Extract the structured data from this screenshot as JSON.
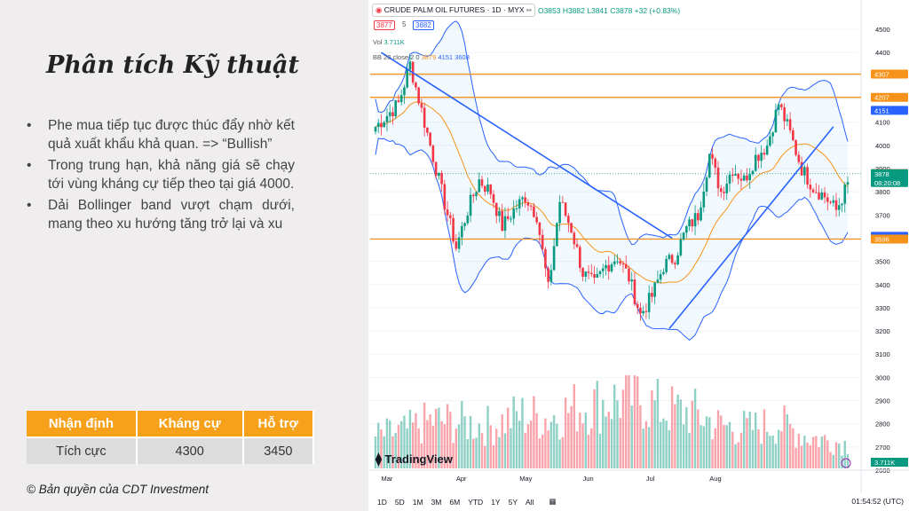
{
  "slide": {
    "title": "Phân tích Kỹ thuật",
    "bullets": [
      "Phe mua tiếp tục được thúc đẩy nhờ kết quả xuất khẩu khả quan. => “Bullish”",
      "Trong trung hạn, khả năng giá sẽ chạy tới vùng kháng cự tiếp theo tại giá 4000.",
      "Dải Bollinger band vượt chạm dưới, mang theo xu hướng tăng trở lại và xu"
    ],
    "table": {
      "headers": [
        "Nhận định",
        "Kháng cự",
        "Hỗ trợ"
      ],
      "row": [
        "Tích cực",
        "4300",
        "3450"
      ]
    },
    "copyright": "© Bản quyền của CDT Investment"
  },
  "chart_header": {
    "symbol": "CRUDE PALM OIL FUTURES · 1D · MYX",
    "ohlc": "O3853 H3882 L3841 C3878 +32 (+0.83%)",
    "bid": "3877",
    "spread": "5",
    "ask": "3882",
    "vol_label": "Vol",
    "vol_value": "3.711K",
    "bb_label": "BB 20 close 2 0",
    "bb_basis": "3879",
    "bb_upper": "4151",
    "bb_lower": "3608",
    "watermark": "TradingView",
    "clock": "01:54:52 (UTC)",
    "countdown": "08:20:08",
    "vol_tag": "3.711K"
  },
  "timeframes": [
    "1D",
    "5D",
    "1M",
    "3M",
    "6M",
    "YTD",
    "1Y",
    "5Y",
    "All"
  ],
  "colors": {
    "up": "#089981",
    "down": "#f23645",
    "orange": "#f7931a",
    "band": "#2962ff",
    "accent": "#f7a11a"
  },
  "chart_data": {
    "type": "candlestick",
    "y_ticks": [
      2600,
      2700,
      2800,
      2900,
      3000,
      3100,
      3200,
      3300,
      3400,
      3500,
      3600,
      3700,
      3800,
      3900,
      4000,
      4100,
      4200,
      4300,
      4400,
      4500
    ],
    "ylim": [
      2600,
      4550
    ],
    "x_labels": [
      "Mar",
      "Apr",
      "May",
      "Jun",
      "Jul",
      "Aug"
    ],
    "horizontal_lines": [
      {
        "label": "4307",
        "value": 4307
      },
      {
        "label": "4207",
        "value": 4207
      },
      {
        "label": "3596",
        "value": 3596
      }
    ],
    "price_tags": [
      {
        "label": "4307",
        "value": 4307,
        "color": "#f7931a"
      },
      {
        "label": "4207",
        "value": 4207,
        "color": "#f7931a"
      },
      {
        "label": "4151",
        "value": 4151,
        "color": "#2962ff"
      },
      {
        "label": "3879",
        "value": 3879,
        "color": "#f7931a"
      },
      {
        "label": "3878",
        "value": 3878,
        "color": "#089981"
      },
      {
        "label": "3608",
        "value": 3608,
        "color": "#2962ff"
      },
      {
        "label": "3596",
        "value": 3596,
        "color": "#f7931a"
      }
    ],
    "trendlines": [
      {
        "from": [
          2,
          4400
        ],
        "to": [
          103,
          3600
        ]
      },
      {
        "from": [
          102,
          3210
        ],
        "to": [
          159,
          4080
        ]
      }
    ],
    "waypoints": [
      [
        0,
        4080
      ],
      [
        8,
        4180
      ],
      [
        12,
        4350
      ],
      [
        16,
        4150
      ],
      [
        20,
        3950
      ],
      [
        24,
        3750
      ],
      [
        28,
        3560
      ],
      [
        32,
        3720
      ],
      [
        36,
        3850
      ],
      [
        40,
        3800
      ],
      [
        44,
        3650
      ],
      [
        48,
        3720
      ],
      [
        52,
        3780
      ],
      [
        56,
        3700
      ],
      [
        60,
        3380
      ],
      [
        64,
        3760
      ],
      [
        68,
        3640
      ],
      [
        72,
        3450
      ],
      [
        76,
        3400
      ],
      [
        80,
        3480
      ],
      [
        84,
        3520
      ],
      [
        88,
        3430
      ],
      [
        92,
        3270
      ],
      [
        96,
        3350
      ],
      [
        100,
        3480
      ],
      [
        104,
        3520
      ],
      [
        108,
        3640
      ],
      [
        112,
        3700
      ],
      [
        116,
        3960
      ],
      [
        120,
        3800
      ],
      [
        124,
        3900
      ],
      [
        128,
        3850
      ],
      [
        132,
        3950
      ],
      [
        136,
        4000
      ],
      [
        140,
        4180
      ],
      [
        144,
        4050
      ],
      [
        148,
        3900
      ],
      [
        152,
        3820
      ],
      [
        156,
        3780
      ],
      [
        160,
        3720
      ],
      [
        164,
        3830
      ]
    ],
    "volume_ylim": [
      0,
      35000
    ],
    "volume_waypoints": [
      [
        0,
        12000
      ],
      [
        10,
        14000
      ],
      [
        20,
        18000
      ],
      [
        30,
        17000
      ],
      [
        40,
        16000
      ],
      [
        50,
        20000
      ],
      [
        60,
        19000
      ],
      [
        70,
        23000
      ],
      [
        80,
        25000
      ],
      [
        90,
        27000
      ],
      [
        100,
        22000
      ],
      [
        110,
        21000
      ],
      [
        120,
        16000
      ],
      [
        130,
        15000
      ],
      [
        140,
        17000
      ],
      [
        150,
        12000
      ],
      [
        160,
        10000
      ],
      [
        164,
        9000
      ]
    ]
  }
}
